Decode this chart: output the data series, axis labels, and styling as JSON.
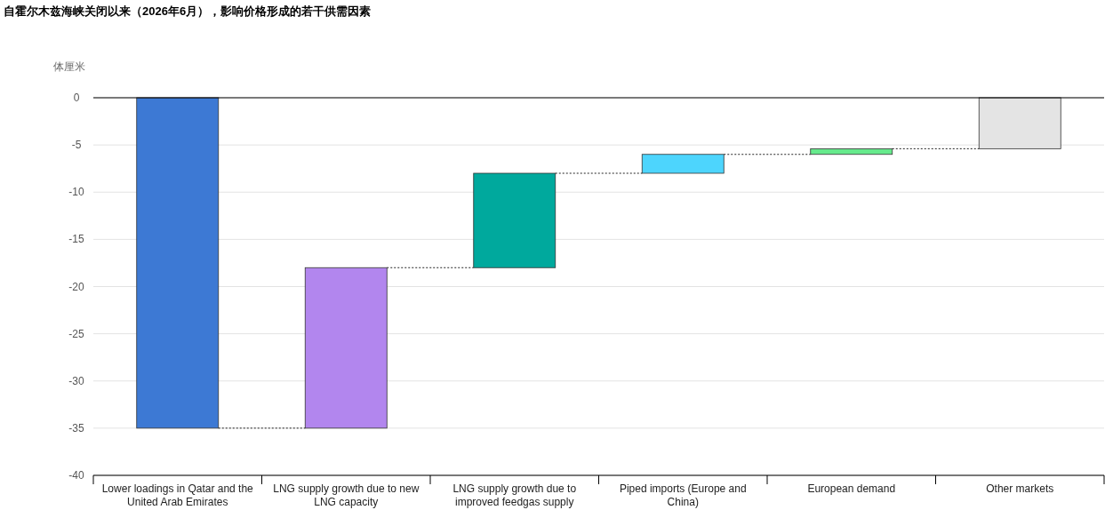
{
  "chart_data": {
    "type": "bar",
    "title": "自霍尔木兹海峡关闭以来（2026年6月），影响价格形成的若干供需因素",
    "ylabel": "体厘米",
    "categories": [
      "Lower loadings in Qatar and the United Arab Emirates",
      "LNG supply growth due to new LNG capacity",
      "LNG supply growth due to improved feedgas supply",
      "Piped imports (Europe and China)",
      "European demand",
      "Other markets"
    ],
    "values": [
      -35,
      17,
      10,
      2,
      0.6,
      5.4
    ],
    "base": [
      0,
      -35,
      -18,
      -8,
      -6,
      -5.4
    ],
    "colors": [
      "#3d79d4",
      "#b286ee",
      "#00a99d",
      "#4dd5fd",
      "#66ea8c",
      "#e4e4e4"
    ],
    "ylim": [
      -40,
      0
    ],
    "yticks": [
      -40,
      -35,
      -30,
      -25,
      -20,
      -15,
      -10,
      -5,
      0
    ],
    "grid": "y",
    "ref_lines": [
      {
        "axis": "y",
        "value": 0,
        "color": "#000000"
      }
    ]
  }
}
